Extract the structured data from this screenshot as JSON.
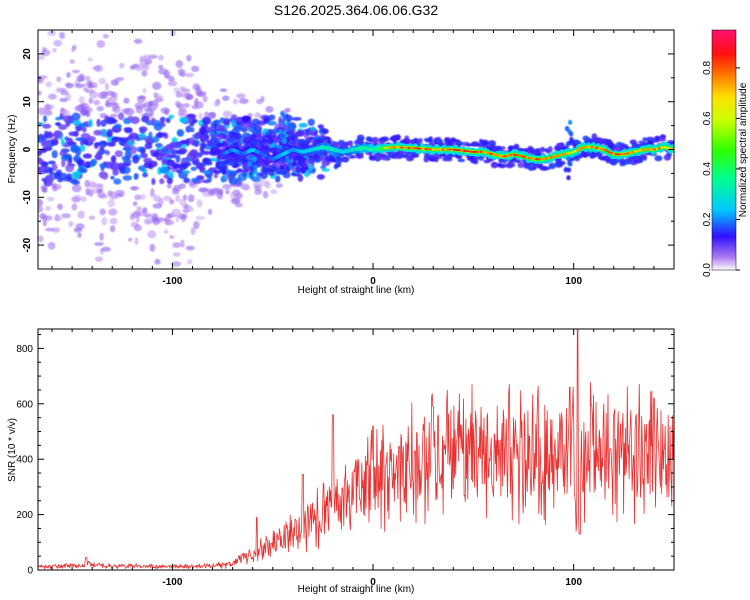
{
  "title": "S126.2025.364.06.06.G32",
  "chart_data": [
    {
      "type": "heatmap",
      "xlabel": "Height of straight line (km)",
      "ylabel": "Frequency (Hz)",
      "xlim": [
        -167,
        150
      ],
      "ylim": [
        -25,
        25
      ],
      "x_ticks": [
        -100,
        0,
        100
      ],
      "x_tick_labels": [
        "-100",
        "0",
        "100"
      ],
      "y_ticks": [
        -20,
        -10,
        0,
        10,
        20
      ],
      "y_tick_labels": [
        "-20",
        "-10",
        "0",
        "10",
        "20"
      ],
      "colorbar": {
        "label": "Normalized spectral amplitude",
        "range": [
          0,
          0.95
        ],
        "ticks": [
          0.0,
          0.2,
          0.4,
          0.6,
          0.8
        ],
        "tick_labels": [
          "0.0",
          "0.2",
          "0.4",
          "0.6",
          "0.8"
        ]
      },
      "ridge": {
        "x": [
          -75,
          -70,
          -65,
          -60,
          -55,
          -50,
          -45,
          -40,
          -35,
          -30,
          -25,
          -20,
          -15,
          -10,
          -5,
          0,
          10,
          20,
          30,
          40,
          50,
          55,
          60,
          65,
          70,
          75,
          80,
          85,
          90,
          95,
          100,
          105,
          110,
          115,
          120,
          125,
          130,
          135,
          140,
          145,
          150
        ],
        "y": [
          -1,
          0,
          -1,
          0,
          -1,
          -2,
          -1,
          0,
          -0.5,
          0,
          0.5,
          0,
          -0.5,
          0,
          0.3,
          0,
          0.5,
          0.3,
          0,
          0,
          -0.5,
          -0.5,
          -1,
          -1.5,
          -1,
          -1.5,
          -2,
          -2,
          -1.5,
          -1,
          -0.5,
          0.5,
          0.5,
          0,
          -1,
          -1,
          -0.5,
          0,
          0,
          0.5,
          0
        ],
        "amplitude": [
          0.3,
          0.35,
          0.3,
          0.4,
          0.3,
          0.3,
          0.4,
          0.35,
          0.4,
          0.45,
          0.5,
          0.5,
          0.45,
          0.5,
          0.55,
          0.6,
          0.8,
          0.85,
          0.8,
          0.85,
          0.85,
          0.8,
          0.85,
          0.8,
          0.85,
          0.8,
          0.8,
          0.85,
          0.8,
          0.75,
          0.7,
          0.8,
          0.8,
          0.85,
          0.8,
          0.85,
          0.8,
          0.75,
          0.8,
          0.75,
          0.7
        ]
      }
    },
    {
      "type": "line",
      "xlabel": "Height of straight line (km)",
      "ylabel": "SNR (10 * v/v)",
      "xlim": [
        -167,
        150
      ],
      "ylim": [
        0,
        870
      ],
      "x_ticks": [
        -100,
        0,
        100
      ],
      "x_tick_labels": [
        "-100",
        "0",
        "100"
      ],
      "y_ticks": [
        0,
        200,
        400,
        600,
        800
      ],
      "y_tick_labels": [
        "0",
        "200",
        "400",
        "600",
        "800"
      ],
      "series": [
        {
          "name": "SNR",
          "color": "#e83030",
          "trend_x": [
            -167,
            -150,
            -140,
            -130,
            -100,
            -80,
            -70,
            -60,
            -50,
            -40,
            -30,
            -20,
            -10,
            0,
            10,
            20,
            30,
            40,
            50,
            60,
            70,
            80,
            90,
            95,
            100,
            102,
            105,
            110,
            120,
            130,
            140,
            150
          ],
          "trend_y": [
            12,
            15,
            20,
            15,
            12,
            15,
            25,
            60,
            90,
            130,
            180,
            230,
            280,
            320,
            360,
            390,
            410,
            420,
            420,
            420,
            420,
            415,
            410,
            420,
            420,
            200,
            430,
            440,
            440,
            420,
            410,
            430
          ],
          "spikes": [
            [
              -143,
              45
            ],
            [
              -20,
              560
            ],
            [
              -35,
              345
            ],
            [
              -58,
              190
            ],
            [
              0,
              520
            ],
            [
              13,
              445
            ],
            [
              30,
              590
            ],
            [
              102,
              870
            ],
            [
              98,
              660
            ],
            [
              103,
              130
            ],
            [
              140,
              620
            ],
            [
              120,
              560
            ]
          ]
        }
      ]
    }
  ]
}
